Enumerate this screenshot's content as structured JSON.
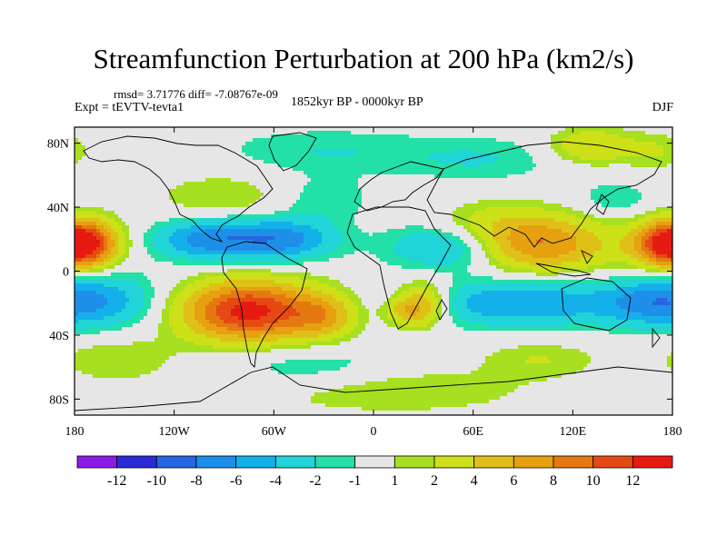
{
  "header": {
    "title": "Streamfunction Perturbation at 200 hPa (km2/s)",
    "stats": "rmsd= 3.71776 diff= -7.08767e-09",
    "experiment": "Expt = tEVTV-tevta1",
    "period": "1852kyr BP - 0000kyr BP",
    "season": "DJF"
  },
  "map": {
    "projection": "cylindrical-equidistant",
    "lon_range": [
      -180,
      180
    ],
    "lat_range": [
      -90,
      90
    ],
    "lat_ticks": [
      {
        "lat": 80,
        "label": "80N"
      },
      {
        "lat": 40,
        "label": "40N"
      },
      {
        "lat": 0,
        "label": "0"
      },
      {
        "lat": -40,
        "label": "40S"
      },
      {
        "lat": -80,
        "label": "80S"
      }
    ],
    "lon_ticks": [
      {
        "lon": -180,
        "label": "180"
      },
      {
        "lon": -120,
        "label": "120W"
      },
      {
        "lon": -60,
        "label": "60W"
      },
      {
        "lon": 0,
        "label": "0"
      },
      {
        "lon": 60,
        "label": "60E"
      },
      {
        "lon": 120,
        "label": "120E"
      },
      {
        "lon": 180,
        "label": "180"
      }
    ],
    "field_anomalies": [
      {
        "lon": -75,
        "lat": -25,
        "sx": 28,
        "sy": 13,
        "amp": 13
      },
      {
        "lon": -30,
        "lat": -28,
        "sx": 14,
        "sy": 10,
        "amp": 5
      },
      {
        "lon": -175,
        "lat": 17,
        "sx": 14,
        "sy": 10,
        "amp": 9
      },
      {
        "lon": 178,
        "lat": 17,
        "sx": 16,
        "sy": 10,
        "amp": 9
      },
      {
        "lon": 100,
        "lat": 17,
        "sx": 30,
        "sy": 12,
        "amp": 8
      },
      {
        "lon": 30,
        "lat": -20,
        "sx": 12,
        "sy": 10,
        "amp": 6
      },
      {
        "lon": 20,
        "lat": -25,
        "sx": 10,
        "sy": 6,
        "amp": 4
      },
      {
        "lon": 130,
        "lat": 78,
        "sx": 18,
        "sy": 8,
        "amp": 4
      },
      {
        "lon": 170,
        "lat": 75,
        "sx": 14,
        "sy": 8,
        "amp": 2
      },
      {
        "lon": -90,
        "lat": 45,
        "sx": 30,
        "sy": 12,
        "amp": 2
      },
      {
        "lon": 70,
        "lat": 30,
        "sx": 25,
        "sy": 10,
        "amp": 2
      },
      {
        "lon": -155,
        "lat": -55,
        "sx": 25,
        "sy": 10,
        "amp": 2
      },
      {
        "lon": 10,
        "lat": -75,
        "sx": 60,
        "sy": 10,
        "amp": 2
      },
      {
        "lon": 100,
        "lat": -55,
        "sx": 25,
        "sy": 8,
        "amp": 2
      },
      {
        "lon": -100,
        "lat": 20,
        "sx": 22,
        "sy": 9,
        "amp": -7
      },
      {
        "lon": -55,
        "lat": 20,
        "sx": 22,
        "sy": 9,
        "amp": -7
      },
      {
        "lon": 45,
        "lat": 15,
        "sx": 25,
        "sy": 10,
        "amp": -5
      },
      {
        "lon": 90,
        "lat": -20,
        "sx": 45,
        "sy": 10,
        "amp": -6
      },
      {
        "lon": -165,
        "lat": -18,
        "sx": 25,
        "sy": 12,
        "amp": -5
      },
      {
        "lon": 165,
        "lat": -20,
        "sx": 20,
        "sy": 10,
        "amp": -4
      },
      {
        "lon": -30,
        "lat": 75,
        "sx": 45,
        "sy": 10,
        "amp": -2
      },
      {
        "lon": 65,
        "lat": 70,
        "sx": 35,
        "sy": 10,
        "amp": -2
      },
      {
        "lon": -40,
        "lat": -60,
        "sx": 35,
        "sy": 10,
        "amp": -2
      },
      {
        "lon": -30,
        "lat": 45,
        "sx": 20,
        "sy": 10,
        "amp": -2
      },
      {
        "lon": 145,
        "lat": 45,
        "sx": 15,
        "sy": 8,
        "amp": -2
      }
    ]
  },
  "colorbar": {
    "colors": [
      "#8c1ae6",
      "#2a2ad8",
      "#2865e0",
      "#1e8fe8",
      "#14b0ea",
      "#20d4d8",
      "#22e0a8",
      "#e6e6e6",
      "#a6e020",
      "#cde018",
      "#e0c018",
      "#e6a010",
      "#e67812",
      "#e64a14",
      "#e61a10"
    ],
    "labels": [
      "-12",
      "-10",
      "-8",
      "-6",
      "-4",
      "-2",
      "-1",
      "1",
      "2",
      "4",
      "6",
      "8",
      "10",
      "12"
    ]
  }
}
